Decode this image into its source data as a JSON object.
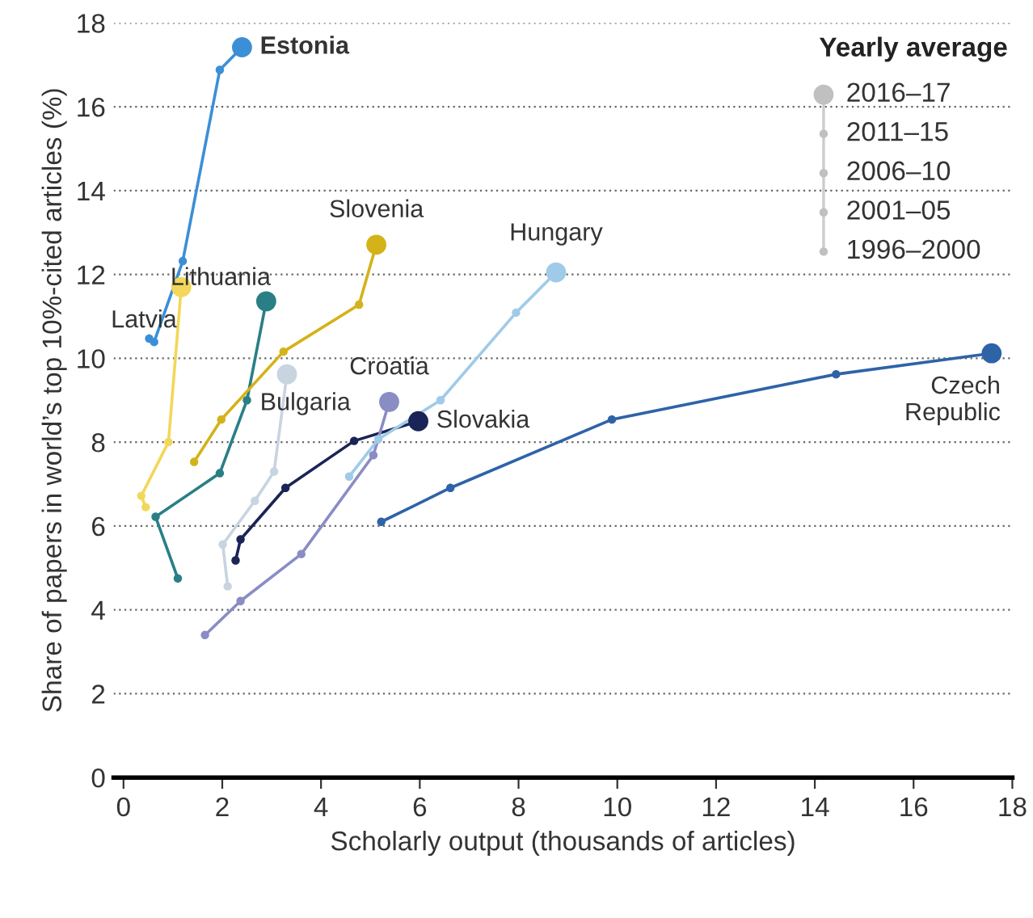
{
  "chart_data": {
    "type": "line",
    "xlabel": "Scholarly output (thousands of articles)",
    "ylabel": "Share of papers in world’s top 10%-cited articles (%)",
    "legend_title": "Yearly average",
    "annotations": [
      "2016–17",
      "2011–15",
      "2006–10",
      "2001–05",
      "1996–2000"
    ],
    "xlim": [
      -0.2,
      18
    ],
    "ylim": [
      0,
      18
    ],
    "xticks": [
      0,
      2,
      4,
      6,
      8,
      10,
      12,
      14,
      16,
      18
    ],
    "yticks": [
      0,
      2,
      4,
      6,
      8,
      10,
      12,
      14,
      16,
      18
    ],
    "grid": "y",
    "marker": "circle",
    "line_style": "solid",
    "series": [
      {
        "name": "Estonia",
        "color": "#3b8fd6",
        "x": [
          0.52,
          0.62,
          1.2,
          1.95,
          2.4
        ],
        "values": [
          10.47,
          10.39,
          12.32,
          16.88,
          17.42
        ]
      },
      {
        "name": "Latvia",
        "color": "#f2d75a",
        "x": [
          0.45,
          0.36,
          0.91,
          1.17
        ],
        "values": [
          6.45,
          6.72,
          8.0,
          11.7
        ]
      },
      {
        "name": "Lithuania",
        "color": "#2a7f86",
        "x": [
          1.1,
          0.65,
          1.95,
          2.5,
          2.89
        ],
        "values": [
          4.75,
          6.22,
          7.26,
          9.0,
          11.36
        ]
      },
      {
        "name": "Slovenia",
        "color": "#d4b21a",
        "x": [
          1.43,
          1.98,
          3.24,
          4.77,
          5.12
        ],
        "values": [
          7.53,
          8.54,
          10.16,
          11.28,
          12.71
        ]
      },
      {
        "name": "Bulgaria",
        "color": "#c8d4e0",
        "x": [
          2.11,
          2.01,
          2.66,
          3.05,
          3.31
        ],
        "values": [
          4.56,
          5.56,
          6.6,
          7.3,
          9.62
        ]
      },
      {
        "name": "Slovakia",
        "color": "#1a2456",
        "x": [
          2.27,
          2.37,
          3.28,
          4.67,
          5.97
        ],
        "values": [
          5.18,
          5.68,
          6.91,
          8.03,
          8.5
        ]
      },
      {
        "name": "Croatia",
        "color": "#8a8cc4",
        "x": [
          1.65,
          2.37,
          3.6,
          5.06,
          5.38
        ],
        "values": [
          3.4,
          4.21,
          5.33,
          7.69,
          8.96
        ]
      },
      {
        "name": "Hungary",
        "color": "#9fcbe8",
        "x": [
          4.57,
          5.16,
          6.42,
          7.95,
          8.76
        ],
        "values": [
          7.18,
          8.07,
          9.0,
          11.09,
          12.05
        ]
      },
      {
        "name": "Czech\nRepublic",
        "color": "#2e63a8",
        "x": [
          5.22,
          6.62,
          9.89,
          14.43,
          17.58
        ],
        "values": [
          6.1,
          6.91,
          8.54,
          9.62,
          10.12
        ]
      }
    ]
  }
}
